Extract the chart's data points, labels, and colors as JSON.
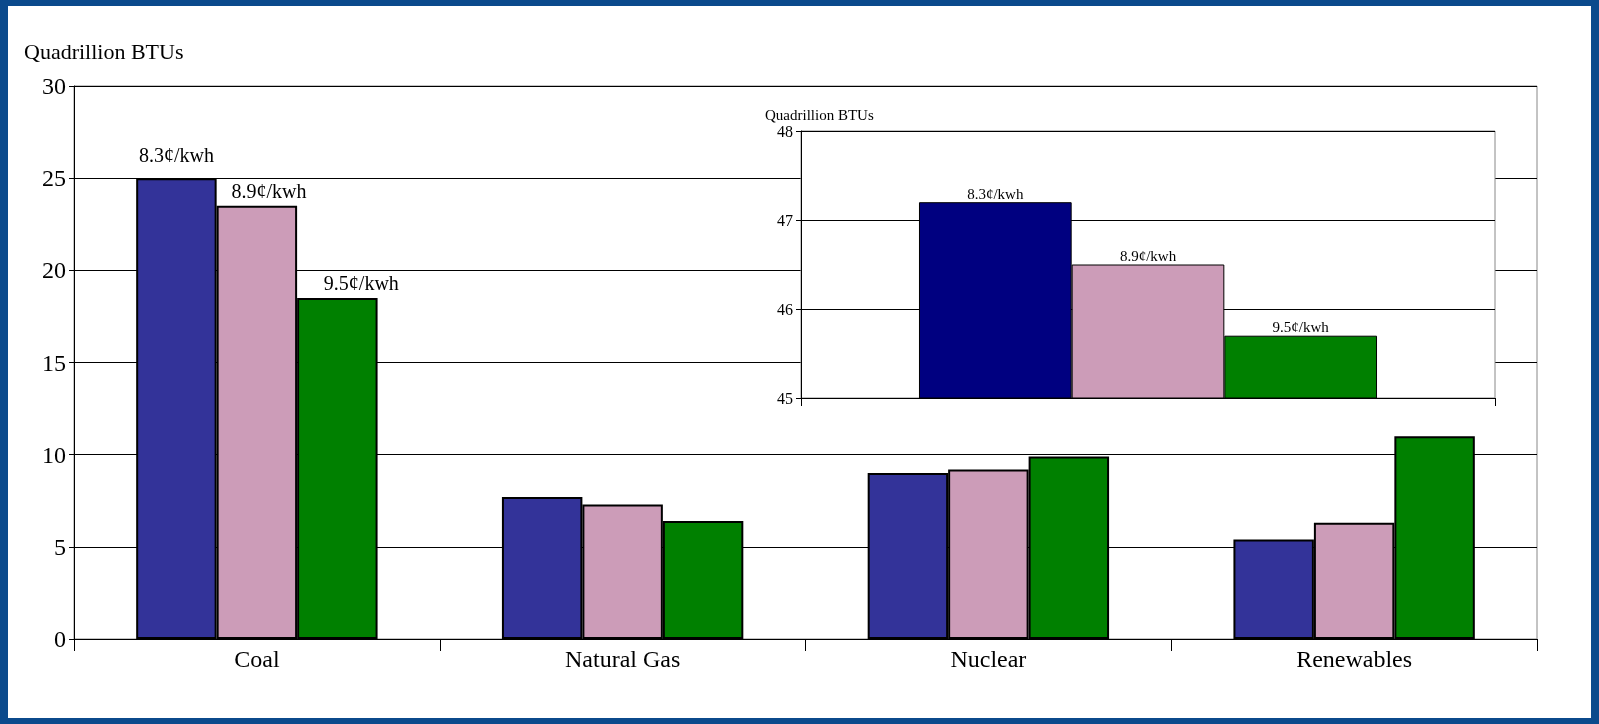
{
  "chart_data": [
    {
      "type": "bar",
      "ylabel": "Quadrillion BTUs",
      "categories": [
        "Coal",
        "Natural Gas",
        "Nuclear",
        "Renewables"
      ],
      "series": [
        {
          "name": "8.3¢/kwh",
          "color": "#333399",
          "values": [
            25,
            7.7,
            9.0,
            5.4
          ]
        },
        {
          "name": "8.9¢/kwh",
          "color": "#cc9cb8",
          "values": [
            23.5,
            7.3,
            9.2,
            6.3
          ]
        },
        {
          "name": "9.5¢/kwh",
          "color": "#008000",
          "values": [
            18.5,
            6.4,
            9.9,
            11.0
          ]
        }
      ],
      "ylim": [
        0,
        30
      ],
      "yticks": [
        0,
        5,
        10,
        15,
        20,
        25,
        30
      ],
      "grid": "y"
    },
    {
      "type": "bar",
      "ylabel": "Quadrillion BTUs",
      "categories": [
        null
      ],
      "series": [
        {
          "name": "8.3¢/kwh",
          "color": "#000080",
          "values": [
            47.2
          ]
        },
        {
          "name": "8.9¢/kwh",
          "color": "#cc9cb8",
          "values": [
            46.5
          ]
        },
        {
          "name": "9.5¢/kwh",
          "color": "#008000",
          "values": [
            45.7
          ]
        }
      ],
      "ylim": [
        45,
        48
      ],
      "yticks": [
        45,
        46,
        47,
        48
      ],
      "grid": "y"
    }
  ]
}
